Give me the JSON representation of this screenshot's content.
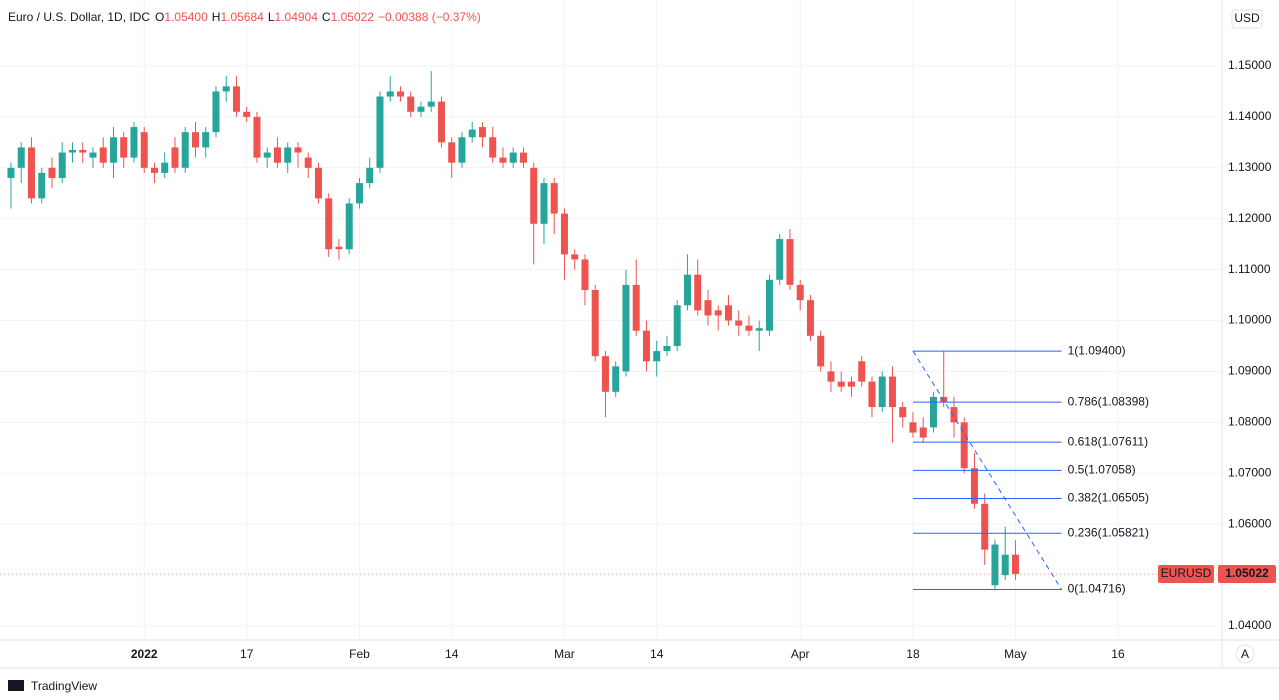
{
  "header": {
    "title": "Euro / U.S. Dollar, 1D, IDC",
    "ohlc": [
      {
        "key": "O",
        "text": "1.05400"
      },
      {
        "key": "H",
        "text": "1.05684"
      },
      {
        "key": "L",
        "text": "1.04904"
      },
      {
        "key": "C",
        "text": "1.05022"
      }
    ],
    "change": "−0.00388 (−0.37%)"
  },
  "chart_data": {
    "type": "candlestick",
    "open": [
      1.128,
      1.13,
      1.134,
      1.124,
      1.13,
      1.128,
      1.133,
      1.1335,
      1.132,
      1.134,
      1.131,
      1.136,
      1.132,
      1.137,
      1.13,
      1.129,
      1.134,
      1.13,
      1.137,
      1.134,
      1.137,
      1.145,
      1.146,
      1.141,
      1.14,
      1.132,
      1.134,
      1.131,
      1.134,
      1.132,
      1.13,
      1.124,
      1.1145,
      1.114,
      1.123,
      1.127,
      1.13,
      1.144,
      1.145,
      1.144,
      1.141,
      1.142,
      1.143,
      1.135,
      1.131,
      1.136,
      1.138,
      1.136,
      1.132,
      1.131,
      1.133,
      1.13,
      1.119,
      1.127,
      1.121,
      1.113,
      1.112,
      1.106,
      1.093,
      1.086,
      1.09,
      1.107,
      1.098,
      1.092,
      1.094,
      1.095,
      1.103,
      1.109,
      1.104,
      1.102,
      1.103,
      1.1,
      1.099,
      1.098,
      1.098,
      1.108,
      1.116,
      1.107,
      1.104,
      1.097,
      1.09,
      1.088,
      1.088,
      1.092,
      1.088,
      1.083,
      1.089,
      1.083,
      1.08,
      1.079,
      1.079,
      1.085,
      1.083,
      1.08,
      1.071,
      1.064,
      1.048,
      1.05,
      1.054
    ],
    "high": [
      1.131,
      1.135,
      1.136,
      1.13,
      1.132,
      1.135,
      1.135,
      1.135,
      1.134,
      1.136,
      1.138,
      1.137,
      1.139,
      1.138,
      1.131,
      1.133,
      1.136,
      1.138,
      1.139,
      1.138,
      1.146,
      1.148,
      1.148,
      1.142,
      1.141,
      1.134,
      1.136,
      1.135,
      1.135,
      1.133,
      1.131,
      1.125,
      1.116,
      1.124,
      1.128,
      1.132,
      1.145,
      1.148,
      1.146,
      1.145,
      1.143,
      1.149,
      1.144,
      1.136,
      1.137,
      1.139,
      1.139,
      1.138,
      1.134,
      1.134,
      1.134,
      1.131,
      1.128,
      1.128,
      1.122,
      1.114,
      1.113,
      1.107,
      1.094,
      1.092,
      1.11,
      1.112,
      1.1,
      1.096,
      1.097,
      1.104,
      1.113,
      1.112,
      1.106,
      1.103,
      1.105,
      1.102,
      1.101,
      1.1,
      1.109,
      1.117,
      1.118,
      1.108,
      1.105,
      1.098,
      1.092,
      1.09,
      1.089,
      1.093,
      1.089,
      1.09,
      1.091,
      1.084,
      1.082,
      1.081,
      1.086,
      1.094,
      1.085,
      1.081,
      1.074,
      1.066,
      1.057,
      1.0595,
      1.05684
    ],
    "low": [
      1.122,
      1.127,
      1.123,
      1.123,
      1.126,
      1.127,
      1.131,
      1.131,
      1.13,
      1.13,
      1.128,
      1.13,
      1.131,
      1.129,
      1.127,
      1.128,
      1.129,
      1.129,
      1.132,
      1.132,
      1.136,
      1.143,
      1.14,
      1.139,
      1.131,
      1.13,
      1.13,
      1.129,
      1.13,
      1.128,
      1.123,
      1.1125,
      1.112,
      1.113,
      1.122,
      1.126,
      1.129,
      1.143,
      1.143,
      1.14,
      1.14,
      1.141,
      1.134,
      1.128,
      1.13,
      1.135,
      1.134,
      1.131,
      1.13,
      1.13,
      1.13,
      1.111,
      1.115,
      1.117,
      1.108,
      1.11,
      1.103,
      1.092,
      1.081,
      1.085,
      1.089,
      1.097,
      1.09,
      1.089,
      1.093,
      1.094,
      1.102,
      1.101,
      1.099,
      1.098,
      1.099,
      1.097,
      1.097,
      1.094,
      1.097,
      1.107,
      1.106,
      1.102,
      1.096,
      1.09,
      1.086,
      1.086,
      1.085,
      1.087,
      1.081,
      1.082,
      1.076,
      1.079,
      1.077,
      1.076,
      1.078,
      1.083,
      1.077,
      1.07,
      1.063,
      1.052,
      1.047,
      1.049,
      1.04904
    ],
    "close": [
      1.13,
      1.134,
      1.124,
      1.129,
      1.128,
      1.133,
      1.1335,
      1.133,
      1.133,
      1.131,
      1.136,
      1.132,
      1.138,
      1.13,
      1.129,
      1.131,
      1.13,
      1.137,
      1.134,
      1.137,
      1.145,
      1.146,
      1.141,
      1.14,
      1.132,
      1.133,
      1.131,
      1.134,
      1.133,
      1.13,
      1.124,
      1.114,
      1.114,
      1.123,
      1.127,
      1.13,
      1.144,
      1.145,
      1.144,
      1.141,
      1.142,
      1.143,
      1.135,
      1.131,
      1.136,
      1.1375,
      1.136,
      1.132,
      1.131,
      1.133,
      1.131,
      1.119,
      1.127,
      1.121,
      1.113,
      1.112,
      1.106,
      1.093,
      1.086,
      1.091,
      1.107,
      1.098,
      1.092,
      1.094,
      1.095,
      1.103,
      1.109,
      1.102,
      1.101,
      1.101,
      1.1,
      1.099,
      1.098,
      1.0985,
      1.108,
      1.116,
      1.107,
      1.104,
      1.097,
      1.091,
      1.088,
      1.087,
      1.087,
      1.088,
      1.083,
      1.089,
      1.083,
      1.081,
      1.078,
      1.077,
      1.085,
      1.084,
      1.08,
      1.071,
      1.064,
      1.055,
      1.056,
      1.054,
      1.05022
    ],
    "up_color": "#26a69a",
    "down_color": "#ef5350",
    "xlim": [
      -1.07,
      118.15
    ],
    "xticks": [
      {
        "value": 13,
        "label": "2022"
      },
      {
        "value": 23,
        "label": "17"
      },
      {
        "value": 34,
        "label": "Feb"
      },
      {
        "value": 43,
        "label": "14"
      },
      {
        "value": 54,
        "label": "Mar"
      },
      {
        "value": 63,
        "label": "14"
      },
      {
        "value": 77,
        "label": "Apr"
      },
      {
        "value": 88,
        "label": "18"
      },
      {
        "value": 98,
        "label": "May"
      },
      {
        "value": 108,
        "label": "16"
      }
    ],
    "ylim": [
      1.03725,
      1.16296
    ],
    "yticks": [
      {
        "value": 1.04,
        "label": "1.04000"
      },
      {
        "value": 1.05,
        "label": "1.05000"
      },
      {
        "value": 1.06,
        "label": "1.06000"
      },
      {
        "value": 1.07,
        "label": "1.07000"
      },
      {
        "value": 1.08,
        "label": "1.08000"
      },
      {
        "value": 1.09,
        "label": "1.09000"
      },
      {
        "value": 1.1,
        "label": "1.10000"
      },
      {
        "value": 1.11,
        "label": "1.11000"
      },
      {
        "value": 1.12,
        "label": "1.12000"
      },
      {
        "value": 1.13,
        "label": "1.13000"
      },
      {
        "value": 1.14,
        "label": "1.14000"
      },
      {
        "value": 1.15,
        "label": "1.15000"
      }
    ],
    "grid": true,
    "currency": "USD",
    "last_price": {
      "symbol": "EURUSD",
      "value": 1.05022,
      "label": "1.05022"
    },
    "fib": {
      "color": "#2962ff",
      "x_range": [
        88,
        102.5
      ],
      "levels": [
        {
          "ratio": 1,
          "price": 1.094,
          "label": "1(1.09400)"
        },
        {
          "ratio": 0.786,
          "price": 1.08398,
          "label": "0.786(1.08398)"
        },
        {
          "ratio": 0.618,
          "price": 1.07611,
          "label": "0.618(1.07611)"
        },
        {
          "ratio": 0.5,
          "price": 1.07058,
          "label": "0.5(1.07058)"
        },
        {
          "ratio": 0.382,
          "price": 1.06505,
          "label": "0.382(1.06505)"
        },
        {
          "ratio": 0.236,
          "price": 1.05821,
          "label": "0.236(1.05821)"
        },
        {
          "ratio": 0,
          "price": 1.04716,
          "label": "0(1.04716)"
        }
      ]
    }
  },
  "scale_button": "A",
  "footer": {
    "brand": "TradingView"
  }
}
